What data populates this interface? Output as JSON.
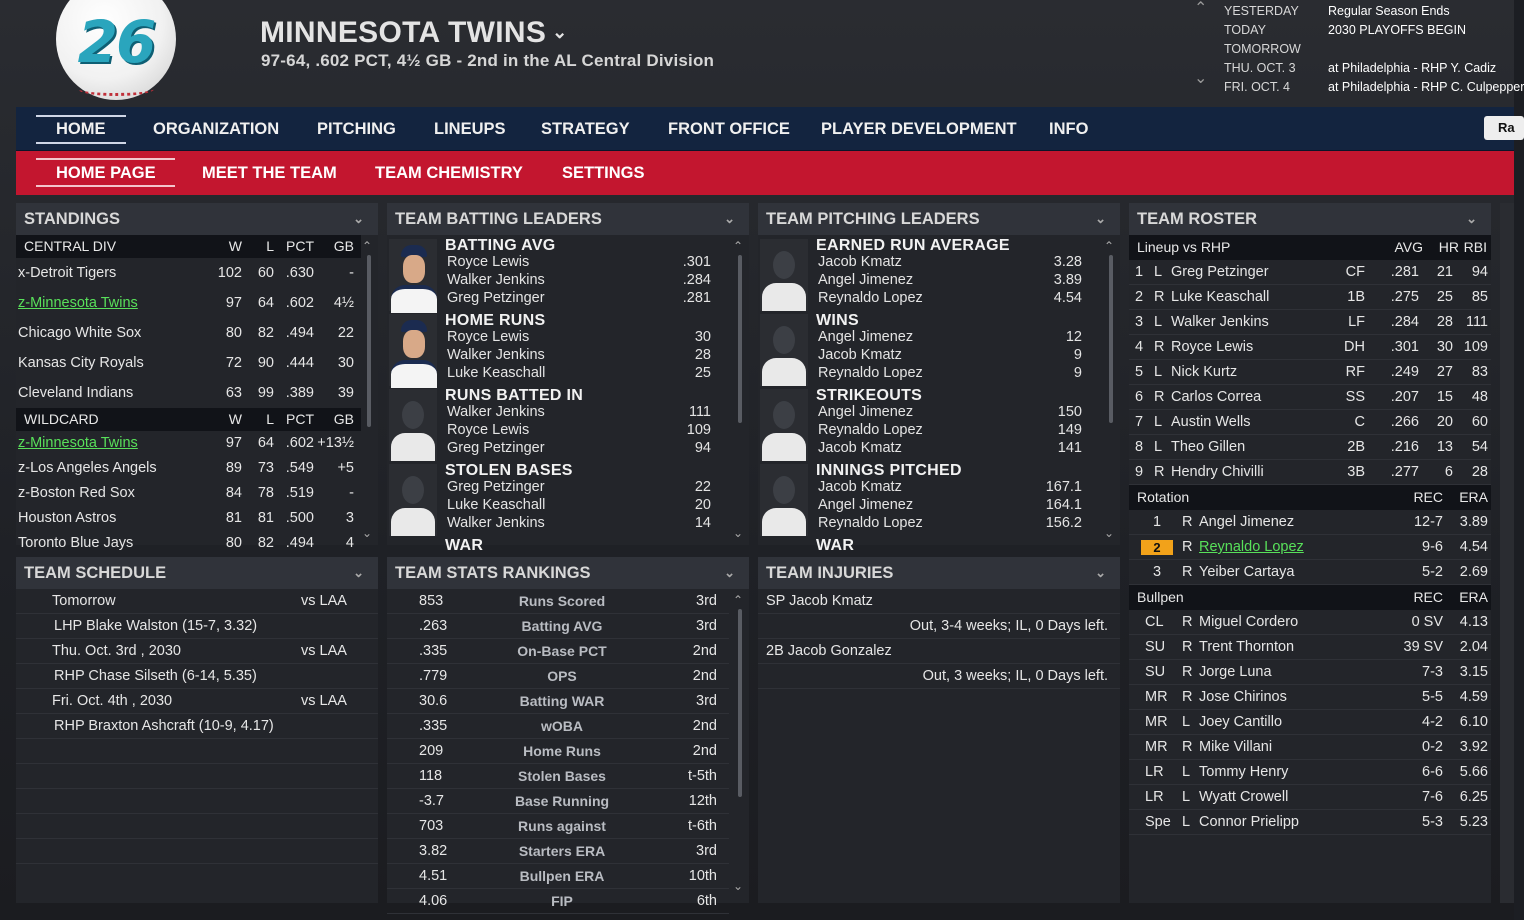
{
  "header": {
    "logo_number": "26",
    "team_name": "MINNESOTA TWINS",
    "record_line": "97-64, .602 PCT, 4½ GB - 2nd in the AL Central Division"
  },
  "calendar": {
    "dates": [
      "YESTERDAY",
      "TODAY",
      "TOMORROW",
      "THU. OCT. 3",
      "FRI. OCT. 4"
    ],
    "events": [
      "Regular Season Ends",
      "2030 PLAYOFFS BEGIN",
      "",
      "at Philadelphia - RHP Y. Cadiz",
      "at Philadelphia - RHP C. Culpepper"
    ]
  },
  "main_nav": [
    "HOME",
    "ORGANIZATION",
    "PITCHING",
    "LINEUPS",
    "STRATEGY",
    "FRONT OFFICE",
    "PLAYER DEVELOPMENT",
    "INFO"
  ],
  "main_nav_right": "Ra",
  "sub_nav": [
    "HOME PAGE",
    "MEET THE TEAM",
    "TEAM CHEMISTRY",
    "SETTINGS"
  ],
  "standings": {
    "title": "STANDINGS",
    "headers": [
      "W",
      "L",
      "PCT",
      "GB"
    ],
    "division_label": "CENTRAL DIV",
    "division": [
      {
        "team": "x-Detroit Tigers",
        "w": "102",
        "l": "60",
        "pct": ".630",
        "gb": "-",
        "hl": false
      },
      {
        "team": "z-Minnesota Twins",
        "w": "97",
        "l": "64",
        "pct": ".602",
        "gb": "4½",
        "hl": true
      },
      {
        "team": "Chicago White Sox",
        "w": "80",
        "l": "82",
        "pct": ".494",
        "gb": "22",
        "hl": false
      },
      {
        "team": "Kansas City Royals",
        "w": "72",
        "l": "90",
        "pct": ".444",
        "gb": "30",
        "hl": false
      },
      {
        "team": "Cleveland Indians",
        "w": "63",
        "l": "99",
        "pct": ".389",
        "gb": "39",
        "hl": false
      }
    ],
    "wildcard_label": "WILDCARD",
    "wildcard": [
      {
        "team": "z-Minnesota Twins",
        "w": "97",
        "l": "64",
        "pct": ".602",
        "gb": "+13½",
        "hl": true
      },
      {
        "team": "z-Los Angeles Angels",
        "w": "89",
        "l": "73",
        "pct": ".549",
        "gb": "+5",
        "hl": false
      },
      {
        "team": "z-Boston Red Sox",
        "w": "84",
        "l": "78",
        "pct": ".519",
        "gb": "-",
        "hl": false
      },
      {
        "team": "Houston Astros",
        "w": "81",
        "l": "81",
        "pct": ".500",
        "gb": "3",
        "hl": false
      },
      {
        "team": "Toronto Blue Jays",
        "w": "80",
        "l": "82",
        "pct": ".494",
        "gb": "4",
        "hl": false
      }
    ]
  },
  "batting_leaders": {
    "title": "TEAM BATTING LEADERS",
    "categories": [
      {
        "title": "BATTING AVG",
        "rows": [
          [
            "Royce Lewis",
            ".301"
          ],
          [
            "Walker Jenkins",
            ".284"
          ],
          [
            "Greg Petzinger",
            ".281"
          ]
        ]
      },
      {
        "title": "HOME RUNS",
        "rows": [
          [
            "Royce Lewis",
            "30"
          ],
          [
            "Walker Jenkins",
            "28"
          ],
          [
            "Luke Keaschall",
            "25"
          ]
        ]
      },
      {
        "title": "RUNS BATTED IN",
        "rows": [
          [
            "Walker Jenkins",
            "111"
          ],
          [
            "Royce Lewis",
            "109"
          ],
          [
            "Greg Petzinger",
            "94"
          ]
        ]
      },
      {
        "title": "STOLEN BASES",
        "rows": [
          [
            "Greg Petzinger",
            "22"
          ],
          [
            "Luke Keaschall",
            "20"
          ],
          [
            "Walker Jenkins",
            "14"
          ]
        ]
      },
      {
        "title": "WAR",
        "rows": []
      }
    ]
  },
  "pitching_leaders": {
    "title": "TEAM PITCHING LEADERS",
    "categories": [
      {
        "title": "EARNED RUN AVERAGE",
        "rows": [
          [
            "Jacob Kmatz",
            "3.28"
          ],
          [
            "Angel Jimenez",
            "3.89"
          ],
          [
            "Reynaldo Lopez",
            "4.54"
          ]
        ]
      },
      {
        "title": "WINS",
        "rows": [
          [
            "Angel Jimenez",
            "12"
          ],
          [
            "Jacob Kmatz",
            "9"
          ],
          [
            "Reynaldo Lopez",
            "9"
          ]
        ]
      },
      {
        "title": "STRIKEOUTS",
        "rows": [
          [
            "Angel Jimenez",
            "150"
          ],
          [
            "Reynaldo Lopez",
            "149"
          ],
          [
            "Jacob Kmatz",
            "141"
          ]
        ]
      },
      {
        "title": "INNINGS PITCHED",
        "rows": [
          [
            "Jacob Kmatz",
            "167.1"
          ],
          [
            "Angel Jimenez",
            "164.1"
          ],
          [
            "Reynaldo Lopez",
            "156.2"
          ]
        ]
      },
      {
        "title": "WAR",
        "rows": []
      }
    ]
  },
  "roster": {
    "title": "TEAM ROSTER",
    "lineup_header": {
      "label": "Lineup vs RHP",
      "avg": "AVG",
      "hr": "HR",
      "rbi": "RBI"
    },
    "lineup": [
      [
        "1",
        "L",
        "Greg Petzinger",
        "CF",
        ".281",
        "21",
        "94"
      ],
      [
        "2",
        "R",
        "Luke Keaschall",
        "1B",
        ".275",
        "25",
        "85"
      ],
      [
        "3",
        "L",
        "Walker Jenkins",
        "LF",
        ".284",
        "28",
        "111"
      ],
      [
        "4",
        "R",
        "Royce Lewis",
        "DH",
        ".301",
        "30",
        "109"
      ],
      [
        "5",
        "L",
        "Nick Kurtz",
        "RF",
        ".249",
        "27",
        "83"
      ],
      [
        "6",
        "R",
        "Carlos Correa",
        "SS",
        ".207",
        "15",
        "48"
      ],
      [
        "7",
        "L",
        "Austin Wells",
        "C",
        ".266",
        "20",
        "60"
      ],
      [
        "8",
        "L",
        "Theo Gillen",
        "2B",
        ".216",
        "13",
        "54"
      ],
      [
        "9",
        "R",
        "Hendry Chivilli",
        "3B",
        ".277",
        "6",
        "28"
      ]
    ],
    "rotation_header": {
      "label": "Rotation",
      "rec": "REC",
      "era": "ERA"
    },
    "rotation": [
      {
        "n": "1",
        "hand": "R",
        "name": "Angel Jimenez",
        "rec": "12-7",
        "era": "3.89",
        "hl": false
      },
      {
        "n": "2",
        "hand": "R",
        "name": "Reynaldo Lopez",
        "rec": "9-6",
        "era": "4.54",
        "hl": true
      },
      {
        "n": "3",
        "hand": "R",
        "name": "Yeiber Cartaya",
        "rec": "5-2",
        "era": "2.69",
        "hl": false
      }
    ],
    "bullpen_header": {
      "label": "Bullpen",
      "rec": "REC",
      "era": "ERA"
    },
    "bullpen": [
      [
        "CL",
        "R",
        "Miguel Cordero",
        "0 SV",
        "4.13"
      ],
      [
        "SU",
        "R",
        "Trent Thornton",
        "39 SV",
        "2.04"
      ],
      [
        "SU",
        "R",
        "Jorge Luna",
        "7-3",
        "3.15"
      ],
      [
        "MR",
        "R",
        "Jose Chirinos",
        "5-5",
        "4.59"
      ],
      [
        "MR",
        "L",
        "Joey Cantillo",
        "4-2",
        "6.10"
      ],
      [
        "MR",
        "R",
        "Mike Villani",
        "0-2",
        "3.92"
      ],
      [
        "LR",
        "L",
        "Tommy Henry",
        "6-6",
        "5.66"
      ],
      [
        "LR",
        "L",
        "Wyatt Crowell",
        "7-6",
        "6.25"
      ],
      [
        "Spe",
        "L",
        "Connor Prielipp",
        "5-3",
        "5.23"
      ]
    ]
  },
  "schedule": {
    "title": "TEAM SCHEDULE",
    "games": [
      {
        "day": "Tomorrow",
        "opp": "vs LAA",
        "pitcher": "LHP Blake Walston (15-7, 3.32)"
      },
      {
        "day": "Thu. Oct. 3rd , 2030",
        "opp": "vs LAA",
        "pitcher": "RHP Chase Silseth (6-14, 5.35)"
      },
      {
        "day": "Fri. Oct. 4th , 2030",
        "opp": "vs LAA",
        "pitcher": "RHP Braxton Ashcraft (10-9, 4.17)"
      }
    ]
  },
  "stats_rankings": {
    "title": "TEAM STATS RANKINGS",
    "rows": [
      [
        "853",
        "Runs Scored",
        "3rd"
      ],
      [
        ".263",
        "Batting AVG",
        "3rd"
      ],
      [
        ".335",
        "On-Base PCT",
        "2nd"
      ],
      [
        ".779",
        "OPS",
        "2nd"
      ],
      [
        "30.6",
        "Batting WAR",
        "3rd"
      ],
      [
        ".335",
        "wOBA",
        "2nd"
      ],
      [
        "209",
        "Home Runs",
        "2nd"
      ],
      [
        "118",
        "Stolen Bases",
        "t-5th"
      ],
      [
        "-3.7",
        "Base Running",
        "12th"
      ],
      [
        "703",
        "Runs against",
        "t-6th"
      ],
      [
        "3.82",
        "Starters ERA",
        "3rd"
      ],
      [
        "4.51",
        "Bullpen ERA",
        "10th"
      ],
      [
        "4.06",
        "FIP",
        "6th"
      ]
    ]
  },
  "injuries": {
    "title": "TEAM INJURIES",
    "items": [
      {
        "player": "SP Jacob Kmatz",
        "status": "Out, 3-4 weeks; IL, 0 Days left."
      },
      {
        "player": "2B Jacob Gonzalez",
        "status": "Out, 3 weeks; IL, 0 Days left."
      }
    ]
  },
  "icons": {
    "chevron": "chevron-down-icon",
    "scroll_up": "chevron-up-icon",
    "scroll_down": "chevron-down-icon"
  }
}
